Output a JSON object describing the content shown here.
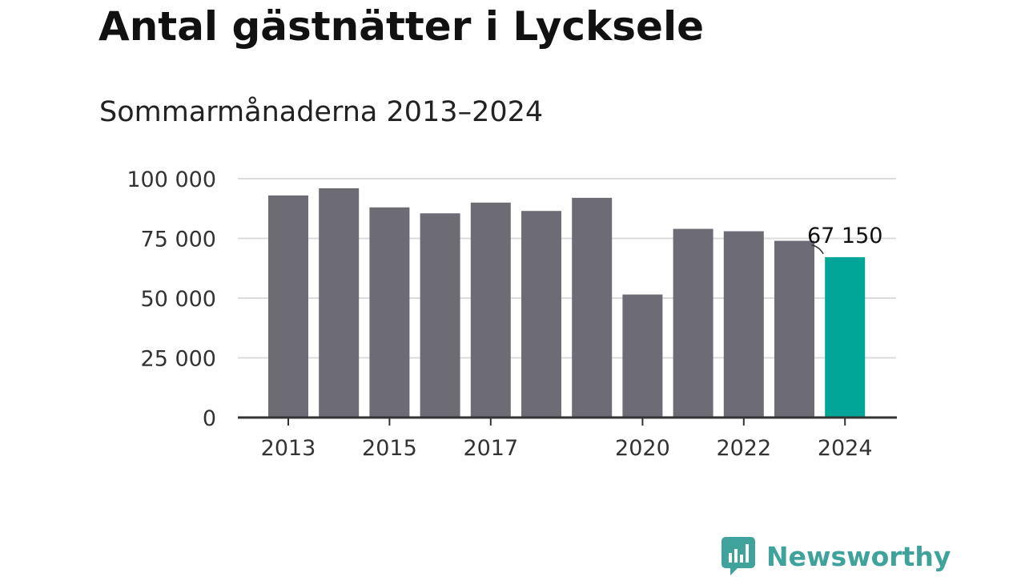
{
  "header": {
    "title": "Antal gästnätter i Lycksele",
    "subtitle": "Sommarmånaderna 2013–2024"
  },
  "chart_data": {
    "type": "bar",
    "title": "Antal gästnätter i Lycksele",
    "subtitle": "Sommarmånaderna 2013–2024",
    "xlabel": "",
    "ylabel": "",
    "categories": [
      "2013",
      "2014",
      "2015",
      "2016",
      "2017",
      "2018",
      "2019",
      "2020",
      "2021",
      "2022",
      "2023",
      "2024"
    ],
    "values": [
      93000,
      96000,
      88000,
      85500,
      90000,
      86500,
      92000,
      51500,
      79000,
      78000,
      74000,
      67150
    ],
    "x_tick_labels": [
      "2013",
      "2015",
      "2017",
      "2020",
      "2022",
      "2024"
    ],
    "y_ticks": [
      0,
      25000,
      50000,
      75000,
      100000
    ],
    "y_tick_labels": [
      "0",
      "25 000",
      "50 000",
      "75 000",
      "100 000"
    ],
    "ylim": [
      0,
      100000
    ],
    "grid": true,
    "highlight_index": 11,
    "highlight_label": "67 150",
    "colors": {
      "bar": "#6d6c74",
      "highlight": "#00a598",
      "grid": "#dcdcdc",
      "axis": "#333333"
    }
  },
  "brand": {
    "name": "Newsworthy",
    "icon": "newsworthy-logo-icon",
    "color": "#3fa39c"
  }
}
